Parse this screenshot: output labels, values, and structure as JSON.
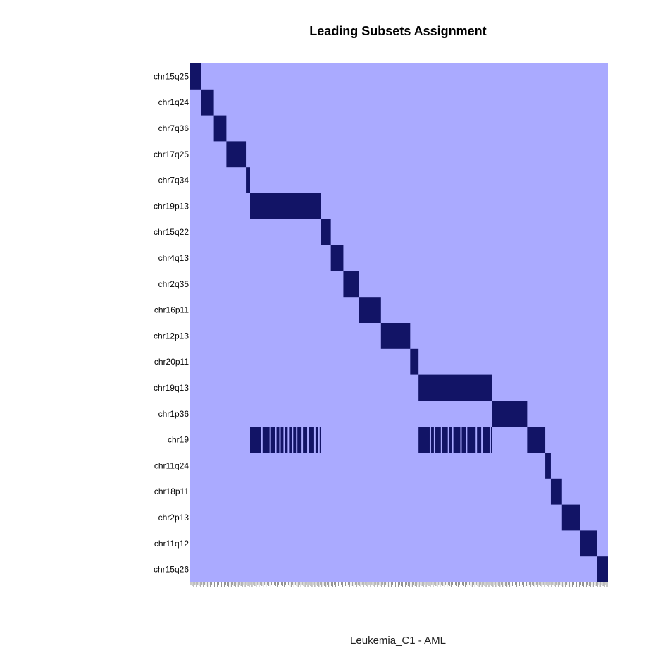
{
  "colors": {
    "background": "#aaaaff",
    "fill": "#121466",
    "tick": "#777777"
  },
  "chart_data": {
    "type": "heatmap",
    "title": "Leading Subsets Assignment",
    "xlabel": "Leukemia_C1 - AML",
    "ylabel": "",
    "n_columns": 300,
    "rows": [
      {
        "label": "chr15q25",
        "segments": [
          [
            0,
            8
          ]
        ]
      },
      {
        "label": "chr1q24",
        "segments": [
          [
            8,
            17
          ]
        ]
      },
      {
        "label": "chr7q36",
        "segments": [
          [
            17,
            26
          ]
        ]
      },
      {
        "label": "chr17q25",
        "segments": [
          [
            26,
            40
          ]
        ]
      },
      {
        "label": "chr7q34",
        "segments": [
          [
            40,
            43
          ]
        ]
      },
      {
        "label": "chr19p13",
        "segments": [
          [
            43,
            94
          ]
        ]
      },
      {
        "label": "chr15q22",
        "segments": [
          [
            94,
            101
          ]
        ]
      },
      {
        "label": "chr4q13",
        "segments": [
          [
            101,
            110
          ]
        ]
      },
      {
        "label": "chr2q35",
        "segments": [
          [
            110,
            121
          ]
        ]
      },
      {
        "label": "chr16p11",
        "segments": [
          [
            121,
            137
          ]
        ]
      },
      {
        "label": "chr12p13",
        "segments": [
          [
            137,
            158
          ]
        ]
      },
      {
        "label": "chr20p11",
        "segments": [
          [
            158,
            164
          ]
        ]
      },
      {
        "label": "chr19q13",
        "segments": [
          [
            164,
            217
          ]
        ]
      },
      {
        "label": "chr1p36",
        "segments": [
          [
            217,
            242
          ]
        ]
      },
      {
        "label": "chr19",
        "segments": [
          [
            43,
            51
          ],
          [
            52,
            57
          ],
          [
            58,
            61
          ],
          [
            62,
            64
          ],
          [
            65,
            67
          ],
          [
            68,
            70
          ],
          [
            71,
            73
          ],
          [
            74,
            76
          ],
          [
            77,
            80
          ],
          [
            81,
            84
          ],
          [
            85,
            89
          ],
          [
            90,
            92
          ],
          [
            93,
            94
          ],
          [
            164,
            172
          ],
          [
            173,
            175
          ],
          [
            176,
            180
          ],
          [
            181,
            185
          ],
          [
            186,
            188
          ],
          [
            189,
            194
          ],
          [
            195,
            198
          ],
          [
            199,
            205
          ],
          [
            206,
            209
          ],
          [
            210,
            215
          ],
          [
            216,
            217
          ],
          [
            242,
            255
          ]
        ]
      },
      {
        "label": "chr11q24",
        "segments": [
          [
            255,
            259
          ]
        ]
      },
      {
        "label": "chr18p11",
        "segments": [
          [
            259,
            267
          ]
        ]
      },
      {
        "label": "chr2p13",
        "segments": [
          [
            267,
            280
          ]
        ]
      },
      {
        "label": "chr11q12",
        "segments": [
          [
            280,
            292
          ]
        ]
      },
      {
        "label": "chr15q26",
        "segments": [
          [
            292,
            300
          ]
        ]
      }
    ]
  }
}
